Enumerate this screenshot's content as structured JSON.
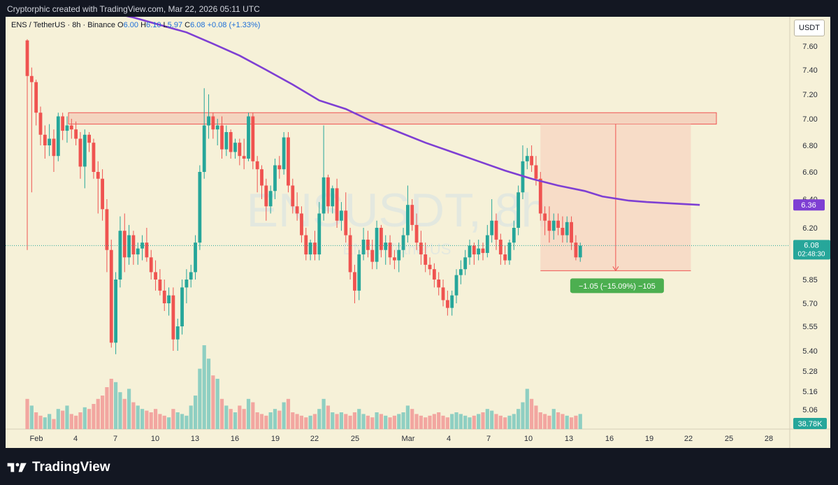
{
  "caption": "Cryptorphic created with TradingView.com, Mar 22, 2026 05:11 UTC",
  "legend": {
    "symbol": "ENS / TetherUS · 8h · Binance",
    "o_label": "O",
    "o": "6.00",
    "h_label": "H",
    "h": "6.10",
    "l_label": "L",
    "l": "5.97",
    "c_label": "C",
    "c": "6.08",
    "change": "+0.08 (+1.33%)"
  },
  "currency_button": "USDT",
  "watermark": {
    "main": "ENSUSDT, 8h",
    "sub": "ENS / TetherUS"
  },
  "brand": "TradingView",
  "colors": {
    "up": "#26a69a",
    "down": "#ef5350",
    "ma": "#7e3fd3",
    "up_volume": "#8fcfc2",
    "down_volume": "#f2a6a0",
    "resistance": "#ef5350",
    "measure_fill": "#f7d4c1",
    "measure_label": "#4caf50"
  },
  "chart_data": {
    "type": "candlestick",
    "timeframe": "8h",
    "y_ticks": [
      "7.60",
      "7.40",
      "7.20",
      "7.00",
      "6.80",
      "6.60",
      "6.40",
      "6.20",
      "5.85",
      "5.70",
      "5.55",
      "5.40",
      "5.28",
      "5.16",
      "5.06"
    ],
    "x_ticks": [
      "Feb",
      "4",
      "7",
      "10",
      "13",
      "16",
      "19",
      "22",
      "25",
      "Mar",
      "4",
      "7",
      "10",
      "13",
      "16",
      "19",
      "22",
      "25",
      "28"
    ],
    "resistance_zone": {
      "from": 6.96,
      "to": 7.05
    },
    "moving_average_last": "6.36",
    "last_price": "6.08",
    "countdown": "02:48:30",
    "last_volume": "38.78K",
    "measure": {
      "label": "−1.05 (−15.09%) −105",
      "from_price": 6.96,
      "to_price": 5.91
    },
    "ohlc": [
      [
        7.65,
        7.66,
        6.05,
        7.35
      ],
      [
        7.35,
        7.42,
        6.45,
        7.3
      ],
      [
        7.3,
        7.32,
        6.95,
        7.05
      ],
      [
        7.05,
        7.1,
        6.8,
        6.88
      ],
      [
        6.88,
        6.95,
        6.7,
        6.8
      ],
      [
        6.8,
        6.96,
        6.72,
        6.85
      ],
      [
        6.85,
        6.92,
        6.6,
        6.72
      ],
      [
        6.72,
        7.05,
        6.68,
        7.02
      ],
      [
        7.02,
        7.05,
        6.84,
        6.91
      ],
      [
        6.91,
        7.02,
        6.82,
        6.95
      ],
      [
        6.95,
        7.0,
        6.85,
        6.92
      ],
      [
        6.92,
        6.98,
        6.8,
        6.85
      ],
      [
        6.85,
        6.9,
        6.55,
        6.64
      ],
      [
        6.64,
        6.92,
        6.48,
        6.88
      ],
      [
        6.88,
        6.9,
        6.75,
        6.82
      ],
      [
        6.82,
        6.85,
        6.55,
        6.6
      ],
      [
        6.6,
        6.68,
        6.3,
        6.55
      ],
      [
        6.55,
        6.62,
        6.25,
        6.33
      ],
      [
        6.33,
        6.4,
        5.9,
        6.05
      ],
      [
        6.05,
        6.12,
        5.42,
        5.45
      ],
      [
        5.45,
        5.9,
        5.38,
        5.85
      ],
      [
        5.85,
        6.28,
        5.8,
        6.18
      ],
      [
        6.18,
        6.3,
        5.9,
        6.0
      ],
      [
        6.0,
        6.22,
        5.95,
        6.15
      ],
      [
        6.15,
        6.18,
        5.95,
        6.02
      ],
      [
        6.02,
        6.1,
        5.95,
        6.06
      ],
      [
        6.06,
        6.15,
        5.98,
        6.1
      ],
      [
        6.1,
        6.2,
        5.97,
        6.0
      ],
      [
        6.0,
        6.05,
        5.85,
        5.9
      ],
      [
        5.9,
        5.98,
        5.78,
        5.85
      ],
      [
        5.85,
        5.92,
        5.75,
        5.78
      ],
      [
        5.78,
        5.85,
        5.65,
        5.7
      ],
      [
        5.7,
        5.8,
        5.62,
        5.75
      ],
      [
        5.75,
        5.8,
        5.4,
        5.47
      ],
      [
        5.47,
        5.6,
        5.4,
        5.55
      ],
      [
        5.55,
        5.85,
        5.5,
        5.8
      ],
      [
        5.8,
        5.92,
        5.7,
        5.85
      ],
      [
        5.85,
        5.95,
        5.8,
        5.9
      ],
      [
        5.9,
        6.15,
        5.85,
        6.1
      ],
      [
        6.1,
        6.65,
        6.05,
        6.6
      ],
      [
        6.6,
        7.25,
        6.55,
        6.95
      ],
      [
        6.95,
        7.2,
        6.85,
        7.02
      ],
      [
        7.02,
        7.05,
        6.85,
        6.92
      ],
      [
        6.92,
        7.0,
        6.8,
        6.95
      ],
      [
        6.95,
        7.02,
        6.7,
        6.77
      ],
      [
        6.77,
        6.95,
        6.72,
        6.9
      ],
      [
        6.9,
        6.92,
        6.7,
        6.75
      ],
      [
        6.75,
        6.85,
        6.7,
        6.82
      ],
      [
        6.82,
        6.85,
        6.65,
        6.72
      ],
      [
        6.72,
        6.85,
        6.62,
        6.7
      ],
      [
        6.7,
        7.05,
        6.68,
        7.02
      ],
      [
        7.02,
        7.05,
        6.62,
        6.68
      ],
      [
        6.68,
        6.72,
        6.45,
        6.62
      ],
      [
        6.62,
        6.65,
        6.4,
        6.5
      ],
      [
        6.5,
        6.55,
        6.25,
        6.35
      ],
      [
        6.35,
        6.5,
        6.3,
        6.46
      ],
      [
        6.46,
        6.7,
        6.4,
        6.65
      ],
      [
        6.65,
        6.72,
        6.55,
        6.62
      ],
      [
        6.62,
        6.9,
        6.58,
        6.86
      ],
      [
        6.86,
        6.9,
        6.45,
        6.5
      ],
      [
        6.5,
        6.55,
        6.3,
        6.35
      ],
      [
        6.35,
        6.45,
        6.25,
        6.3
      ],
      [
        6.3,
        6.35,
        6.1,
        6.15
      ],
      [
        6.15,
        6.2,
        5.98,
        6.02
      ],
      [
        6.02,
        6.12,
        5.98,
        6.1
      ],
      [
        6.1,
        6.18,
        5.98,
        6.02
      ],
      [
        6.02,
        6.38,
        5.98,
        6.3
      ],
      [
        6.3,
        6.95,
        6.25,
        6.56
      ],
      [
        6.56,
        6.58,
        6.3,
        6.35
      ],
      [
        6.35,
        6.5,
        6.3,
        6.48
      ],
      [
        6.48,
        6.55,
        6.2,
        6.25
      ],
      [
        6.25,
        6.38,
        6.18,
        6.32
      ],
      [
        6.32,
        6.45,
        6.1,
        6.15
      ],
      [
        6.15,
        6.2,
        5.85,
        5.9
      ],
      [
        5.9,
        5.95,
        5.7,
        5.78
      ],
      [
        5.78,
        6.05,
        5.72,
        6.02
      ],
      [
        6.02,
        6.2,
        5.98,
        6.12
      ],
      [
        6.12,
        6.18,
        6.0,
        6.05
      ],
      [
        6.05,
        6.12,
        5.92,
        5.97
      ],
      [
        5.97,
        6.25,
        5.92,
        6.2
      ],
      [
        6.2,
        6.22,
        6.0,
        6.05
      ],
      [
        6.05,
        6.15,
        5.95,
        6.1
      ],
      [
        6.1,
        6.15,
        5.95,
        6.0
      ],
      [
        6.0,
        6.05,
        5.92,
        5.98
      ],
      [
        5.98,
        6.1,
        5.9,
        6.05
      ],
      [
        6.05,
        6.2,
        6.0,
        6.15
      ],
      [
        6.15,
        6.5,
        6.1,
        6.36
      ],
      [
        6.36,
        6.4,
        6.18,
        6.22
      ],
      [
        6.22,
        6.3,
        6.05,
        6.1
      ],
      [
        6.1,
        6.18,
        5.95,
        6.02
      ],
      [
        6.02,
        6.1,
        5.9,
        5.95
      ],
      [
        5.95,
        6.0,
        5.88,
        5.92
      ],
      [
        5.92,
        5.96,
        5.8,
        5.85
      ],
      [
        5.85,
        5.9,
        5.75,
        5.8
      ],
      [
        5.8,
        5.85,
        5.68,
        5.72
      ],
      [
        5.72,
        5.78,
        5.62,
        5.67
      ],
      [
        5.67,
        5.78,
        5.62,
        5.75
      ],
      [
        5.75,
        5.92,
        5.7,
        5.88
      ],
      [
        5.88,
        5.98,
        5.82,
        5.92
      ],
      [
        5.92,
        6.05,
        5.88,
        6.0
      ],
      [
        6.0,
        6.12,
        5.95,
        6.08
      ],
      [
        6.08,
        6.1,
        5.95,
        6.02
      ],
      [
        6.02,
        6.12,
        5.98,
        6.06
      ],
      [
        6.06,
        6.1,
        5.98,
        6.03
      ],
      [
        6.03,
        6.22,
        6.0,
        6.15
      ],
      [
        6.15,
        6.4,
        6.1,
        6.25
      ],
      [
        6.25,
        6.3,
        6.05,
        6.12
      ],
      [
        6.12,
        6.16,
        5.95,
        6.02
      ],
      [
        6.02,
        6.08,
        5.95,
        5.98
      ],
      [
        5.98,
        6.12,
        5.95,
        6.1
      ],
      [
        6.1,
        6.25,
        6.05,
        6.2
      ],
      [
        6.2,
        6.5,
        6.15,
        6.45
      ],
      [
        6.45,
        6.8,
        6.4,
        6.68
      ],
      [
        6.68,
        6.78,
        6.62,
        6.72
      ],
      [
        6.72,
        6.8,
        6.6,
        6.65
      ],
      [
        6.65,
        6.72,
        6.5,
        6.55
      ],
      [
        6.55,
        6.6,
        6.25,
        6.3
      ],
      [
        6.3,
        6.35,
        6.15,
        6.25
      ],
      [
        6.25,
        6.35,
        6.1,
        6.18
      ],
      [
        6.18,
        6.3,
        6.12,
        6.25
      ],
      [
        6.25,
        6.3,
        6.15,
        6.2
      ],
      [
        6.2,
        6.28,
        6.1,
        6.15
      ],
      [
        6.15,
        6.28,
        6.1,
        6.24
      ],
      [
        6.24,
        6.28,
        6.05,
        6.1
      ],
      [
        6.1,
        6.15,
        5.98,
        6.0
      ],
      [
        6.0,
        6.1,
        5.97,
        6.08
      ]
    ],
    "ma": [
      [
        0,
        8.0
      ],
      [
        12,
        7.95
      ],
      [
        24,
        7.85
      ],
      [
        36,
        7.72
      ],
      [
        42,
        7.62
      ],
      [
        48,
        7.52
      ],
      [
        54,
        7.4
      ],
      [
        60,
        7.28
      ],
      [
        66,
        7.15
      ],
      [
        72,
        7.08
      ],
      [
        78,
        6.98
      ],
      [
        84,
        6.9
      ],
      [
        90,
        6.82
      ],
      [
        96,
        6.75
      ],
      [
        102,
        6.68
      ],
      [
        108,
        6.61
      ],
      [
        114,
        6.55
      ],
      [
        120,
        6.5
      ],
      [
        126,
        6.46
      ],
      [
        130,
        6.42
      ],
      [
        136,
        6.39
      ],
      [
        140,
        6.38
      ],
      [
        146,
        6.37
      ],
      [
        152,
        6.36
      ]
    ],
    "volume": [
      18,
      14,
      10,
      8,
      7,
      9,
      6,
      12,
      11,
      14,
      9,
      8,
      10,
      13,
      12,
      15,
      18,
      20,
      25,
      30,
      28,
      22,
      18,
      24,
      16,
      14,
      12,
      11,
      10,
      12,
      9,
      8,
      7,
      12,
      10,
      9,
      8,
      14,
      20,
      36,
      50,
      42,
      32,
      30,
      18,
      14,
      12,
      10,
      14,
      12,
      18,
      16,
      10,
      9,
      8,
      10,
      12,
      11,
      16,
      18,
      10,
      9,
      8,
      7,
      8,
      9,
      12,
      18,
      14,
      10,
      9,
      10,
      9,
      8,
      10,
      12,
      9,
      8,
      7,
      10,
      9,
      8,
      7,
      8,
      9,
      10,
      14,
      12,
      9,
      8,
      7,
      8,
      9,
      10,
      8,
      7,
      9,
      10,
      9,
      8,
      7,
      8,
      9,
      10,
      12,
      11,
      9,
      8,
      7,
      8,
      9,
      12,
      16,
      24,
      18,
      14,
      10,
      9,
      8,
      12,
      10,
      9,
      8,
      7,
      8,
      9
    ],
    "volume_up": [
      false,
      true,
      false,
      false,
      true,
      true,
      false,
      true,
      false,
      true,
      false,
      false,
      false,
      true,
      false,
      false,
      false,
      false,
      false,
      false,
      true,
      true,
      false,
      true,
      false,
      true,
      true,
      false,
      false,
      false,
      false,
      false,
      true,
      false,
      true,
      true,
      true,
      true,
      true,
      true,
      true,
      true,
      false,
      true,
      false,
      true,
      false,
      true,
      false,
      false,
      true,
      false,
      false,
      false,
      false,
      true,
      true,
      false,
      true,
      false,
      false,
      false,
      false,
      false,
      true,
      false,
      true,
      true,
      false,
      true,
      false,
      true,
      false,
      false,
      false,
      true,
      true,
      false,
      false,
      true,
      false,
      true,
      false,
      false,
      true,
      true,
      true,
      false,
      false,
      false,
      false,
      false,
      false,
      false,
      false,
      false,
      true,
      true,
      true,
      true,
      true,
      false,
      true,
      false,
      true,
      true,
      false,
      false,
      false,
      true,
      true,
      true,
      true,
      true,
      false,
      false,
      false,
      false,
      false,
      true,
      false,
      false,
      true,
      false,
      false,
      true
    ]
  }
}
